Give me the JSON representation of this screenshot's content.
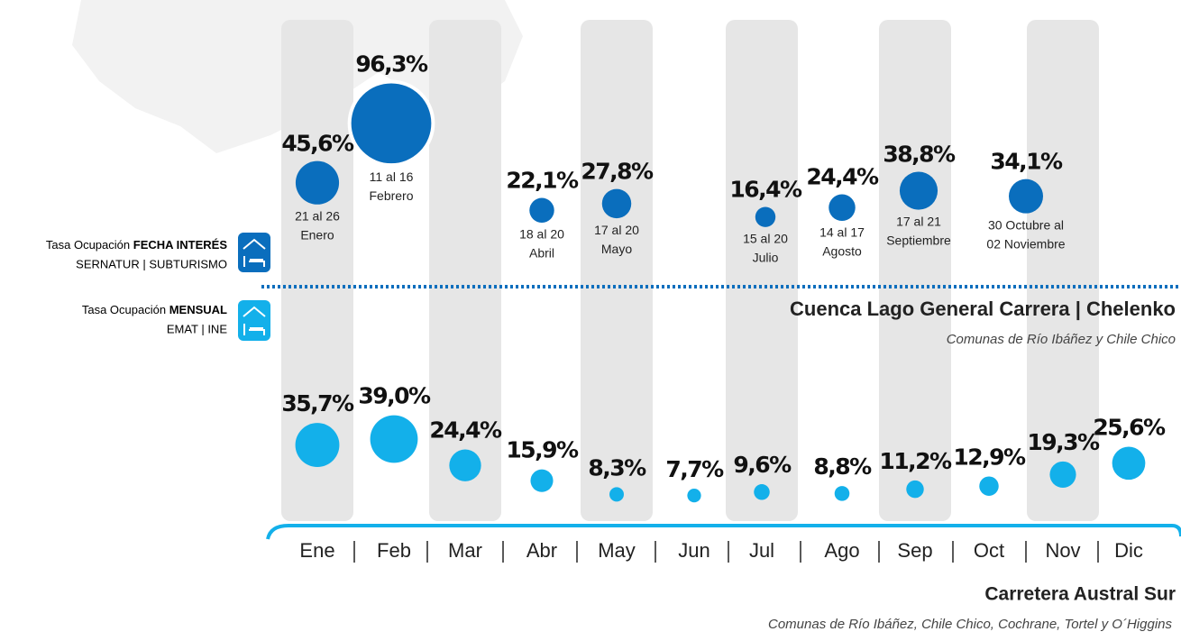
{
  "chart_data": {
    "type": "bubble",
    "categories": [
      "Ene",
      "Feb",
      "Mar",
      "Abr",
      "May",
      "Jun",
      "Jul",
      "Ago",
      "Sep",
      "Oct",
      "Nov",
      "Dic"
    ],
    "series": [
      {
        "name": "Tasa Ocupación",
        "name_bold": "FECHA INTERÉS",
        "source": "SERNATUR | SUBTURISMO",
        "color": "#0a6ebd",
        "labels": [
          [
            "21 al 26",
            "Enero"
          ],
          [
            "11 al 16",
            "Febrero"
          ],
          [
            "18 al 20",
            "Abril"
          ],
          [
            "17 al 20",
            "Mayo"
          ],
          [
            "15 al 20",
            "Julio"
          ],
          [
            "14 al 17",
            "Agosto"
          ],
          [
            "17 al 21",
            "Septiembre"
          ],
          [
            "30 Octubre al",
            "02 Noviembre"
          ]
        ],
        "values": [
          45.6,
          96.3,
          22.1,
          27.8,
          16.4,
          24.4,
          38.8,
          34.1
        ],
        "value_labels": [
          "45,6%",
          "96,3%",
          "22,1%",
          "27,8%",
          "16,4%",
          "24,4%",
          "38,8%",
          "34,1%"
        ]
      },
      {
        "name": "Tasa Ocupación",
        "name_bold": "MENSUAL",
        "source": "EMAT | INE",
        "color": "#13b0ea",
        "values": [
          35.7,
          39.0,
          24.4,
          15.9,
          8.3,
          7.7,
          9.6,
          8.8,
          11.2,
          12.9,
          19.3,
          25.6
        ],
        "value_labels": [
          "35,7%",
          "39,0%",
          "24,4%",
          "15,9%",
          "8,3%",
          "7,7%",
          "9,6%",
          "8,8%",
          "11,2%",
          "12,9%",
          "19,3%",
          "25,6%"
        ]
      }
    ],
    "heading_top": "Cuenca Lago General Carrera | Chelenko",
    "subheading_top": "Comunas de  Río Ibáñez y Chile Chico",
    "heading_bottom": "Carretera Austral Sur",
    "subheading_bottom": "Comunas de Río Ibáñez, Chile Chico, Cochrane, Tortel y O´Higgins"
  }
}
